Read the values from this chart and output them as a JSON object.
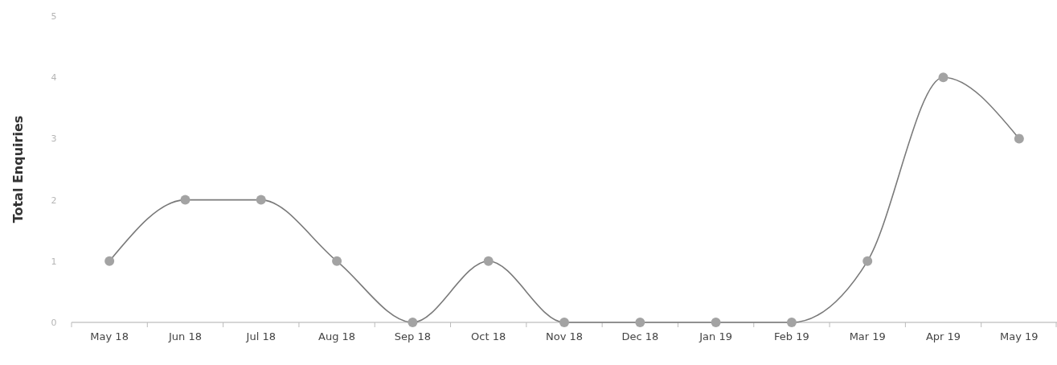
{
  "chart_data": {
    "type": "line",
    "ylabel": "Total Enquiries",
    "categories": [
      "May 18",
      "Jun 18",
      "Jul 18",
      "Aug 18",
      "Sep 18",
      "Oct 18",
      "Nov 18",
      "Dec 18",
      "Jan 19",
      "Feb 19",
      "Mar 19",
      "Apr 19",
      "May 19"
    ],
    "series": [
      {
        "color": "#a3a3a3",
        "values": [
          1,
          2,
          2,
          1,
          0,
          1,
          0,
          0,
          0,
          0,
          1,
          4,
          3
        ]
      }
    ],
    "ylim": [
      0,
      5
    ],
    "yticks": [
      0,
      1,
      2,
      3,
      4,
      5
    ],
    "marker": "circle",
    "line_style": "solid"
  }
}
